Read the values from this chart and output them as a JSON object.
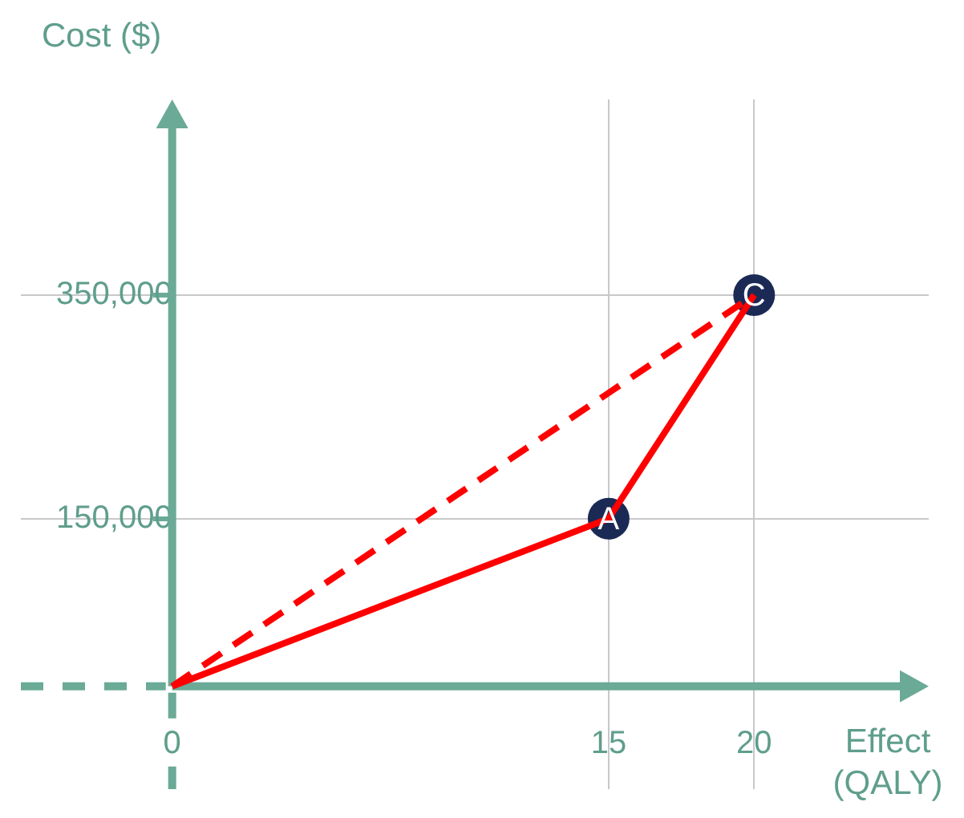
{
  "chart_data": {
    "type": "line",
    "xlabel": "Effect (QALY)",
    "ylabel": "Cost ($)",
    "xlim": [
      -5.2,
      26
    ],
    "ylim": [
      -92000,
      525000
    ],
    "xticks": [
      {
        "value": 0,
        "label": "0"
      },
      15,
      20
    ],
    "yticks": [
      {
        "value": 150000,
        "label": "150,000"
      },
      {
        "value": 350000,
        "label": "350,000"
      }
    ],
    "series": [
      {
        "color": "#ff0000",
        "x": [
          0,
          15,
          20
        ],
        "values": [
          0,
          150000,
          350000
        ],
        "line_style": "solid",
        "marker": "none"
      },
      {
        "color": "#ff0000",
        "x": [
          0,
          20
        ],
        "values": [
          0,
          350000
        ],
        "line_style": "dashed",
        "marker": "none"
      },
      {
        "type": "scatter",
        "color": "#1b2a55",
        "x": [
          15,
          20
        ],
        "values": [
          150000,
          350000
        ],
        "marker": "circle"
      }
    ],
    "annotations": [
      {
        "text": "A",
        "x": 15,
        "y": 150000
      },
      {
        "text": "C",
        "x": 20,
        "y": 350000
      }
    ],
    "grid": true,
    "legend": false
  }
}
